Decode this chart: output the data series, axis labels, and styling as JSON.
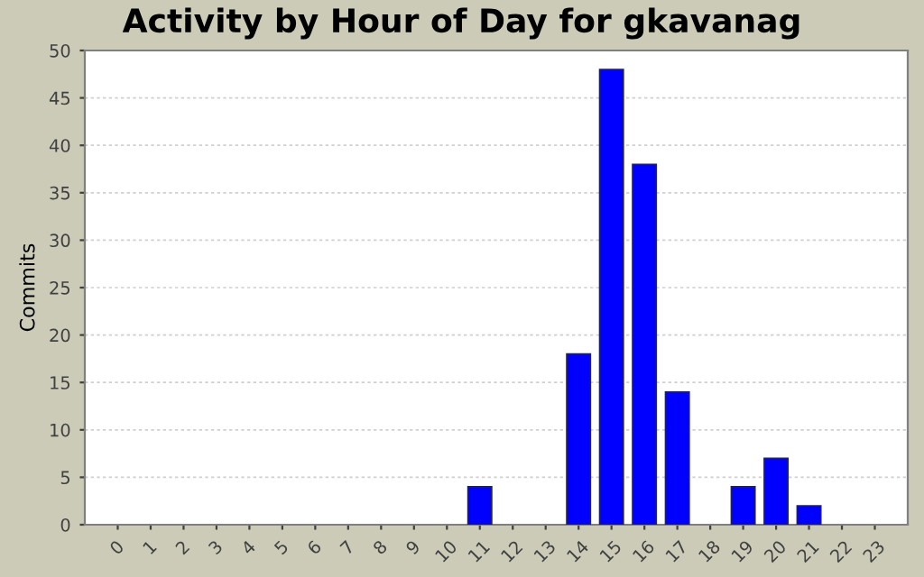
{
  "chart_data": {
    "type": "bar",
    "title": "Activity by Hour of Day for gkavanag",
    "ylabel": "Commits",
    "categories": [
      "0",
      "1",
      "2",
      "3",
      "4",
      "5",
      "6",
      "7",
      "8",
      "9",
      "10",
      "11",
      "12",
      "13",
      "14",
      "15",
      "16",
      "17",
      "18",
      "19",
      "20",
      "21",
      "22",
      "23"
    ],
    "values": [
      0,
      0,
      0,
      0,
      0,
      0,
      0,
      0,
      0,
      0,
      0,
      4,
      0,
      0,
      18,
      48,
      38,
      14,
      0,
      4,
      7,
      2,
      0,
      0
    ],
    "color": "#0000ff",
    "ylim": [
      0,
      50
    ],
    "yticks": [
      0,
      5,
      10,
      15,
      20,
      25,
      30,
      35,
      40,
      45,
      50
    ],
    "grid": "y"
  }
}
